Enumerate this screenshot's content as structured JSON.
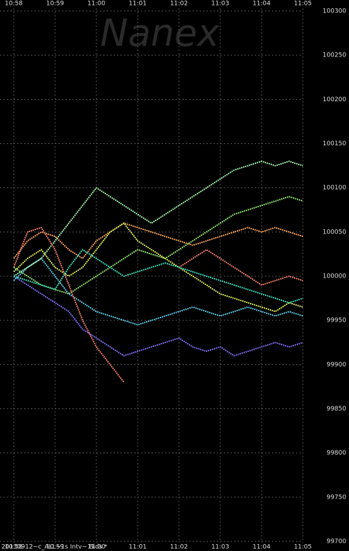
{
  "chart_data": {
    "type": "line",
    "watermark": "Nanex",
    "footer": "20130912~c_ALL~1s Intv~ Bids *",
    "categories": [
      "10:58",
      null,
      null,
      "10:59",
      null,
      null,
      "11:00",
      null,
      null,
      "11:01",
      null,
      null,
      "11:02",
      null,
      null,
      "11:03",
      null,
      null,
      "11:04",
      null,
      null,
      "11:05"
    ],
    "ylim": [
      99700,
      100300
    ],
    "yticks": [
      99700,
      99750,
      99800,
      99850,
      99900,
      99950,
      100000,
      100050,
      100100,
      100150,
      100200,
      100250,
      100300
    ],
    "grid": true,
    "series": [
      {
        "color": "#7b6cf0",
        "values": [
          100000,
          99990,
          99980,
          99970,
          99960,
          99940,
          99930,
          99920,
          99910,
          99915,
          99920,
          99925,
          99930,
          99920,
          99915,
          99920,
          99910,
          99915,
          99920,
          99925,
          99920,
          99925
        ]
      },
      {
        "color": "#f5a05a",
        "values": [
          100020,
          100040,
          100050,
          100045,
          100030,
          100020,
          100040,
          100050,
          100060,
          100055,
          100050,
          100045,
          100040,
          100035,
          100040,
          100045,
          100050,
          100055,
          100050,
          100055,
          100050,
          100045
        ]
      },
      {
        "color": "#8ee06a",
        "values": [
          100010,
          100000,
          99990,
          99985,
          99980,
          99990,
          100000,
          100010,
          100020,
          100030,
          100025,
          100020,
          100030,
          100040,
          100050,
          100060,
          100070,
          100075,
          100080,
          100085,
          100090,
          100085
        ]
      },
      {
        "color": "#5ac8e6",
        "values": [
          99995,
          100010,
          100020,
          100000,
          99980,
          99970,
          99960,
          99955,
          99950,
          99945,
          99950,
          99955,
          99960,
          99965,
          99960,
          99955,
          99960,
          99965,
          99960,
          99955,
          99960,
          99955
        ]
      },
      {
        "color": "#d8e85a",
        "values": [
          100005,
          100020,
          100030,
          100010,
          100000,
          100010,
          100030,
          100050,
          100060,
          100040,
          100030,
          100020,
          100010,
          100000,
          99990,
          99980,
          99975,
          99970,
          99965,
          99960,
          99970,
          99965
        ]
      },
      {
        "color": "#9ef0a8",
        "values": [
          100000,
          100010,
          100020,
          100040,
          100060,
          100080,
          100100,
          100090,
          100080,
          100070,
          100060,
          100070,
          100080,
          100090,
          100100,
          100110,
          100120,
          100125,
          100130,
          100125,
          100130,
          100125
        ]
      },
      {
        "color": "#f07a6a",
        "values": [
          100010,
          100050,
          100055,
          100030,
          99990,
          99950,
          99920,
          99900,
          99880,
          null,
          null,
          null,
          100010,
          100020,
          100030,
          100020,
          100010,
          100000,
          99990,
          99995,
          100000,
          99995
        ]
      },
      {
        "color": "#40d8b8",
        "values": [
          100000,
          99995,
          99990,
          99985,
          100010,
          100030,
          100020,
          100010,
          100000,
          100005,
          100010,
          100015,
          100010,
          100005,
          100000,
          99995,
          99990,
          99985,
          99980,
          99975,
          99970,
          99975
        ]
      }
    ]
  }
}
